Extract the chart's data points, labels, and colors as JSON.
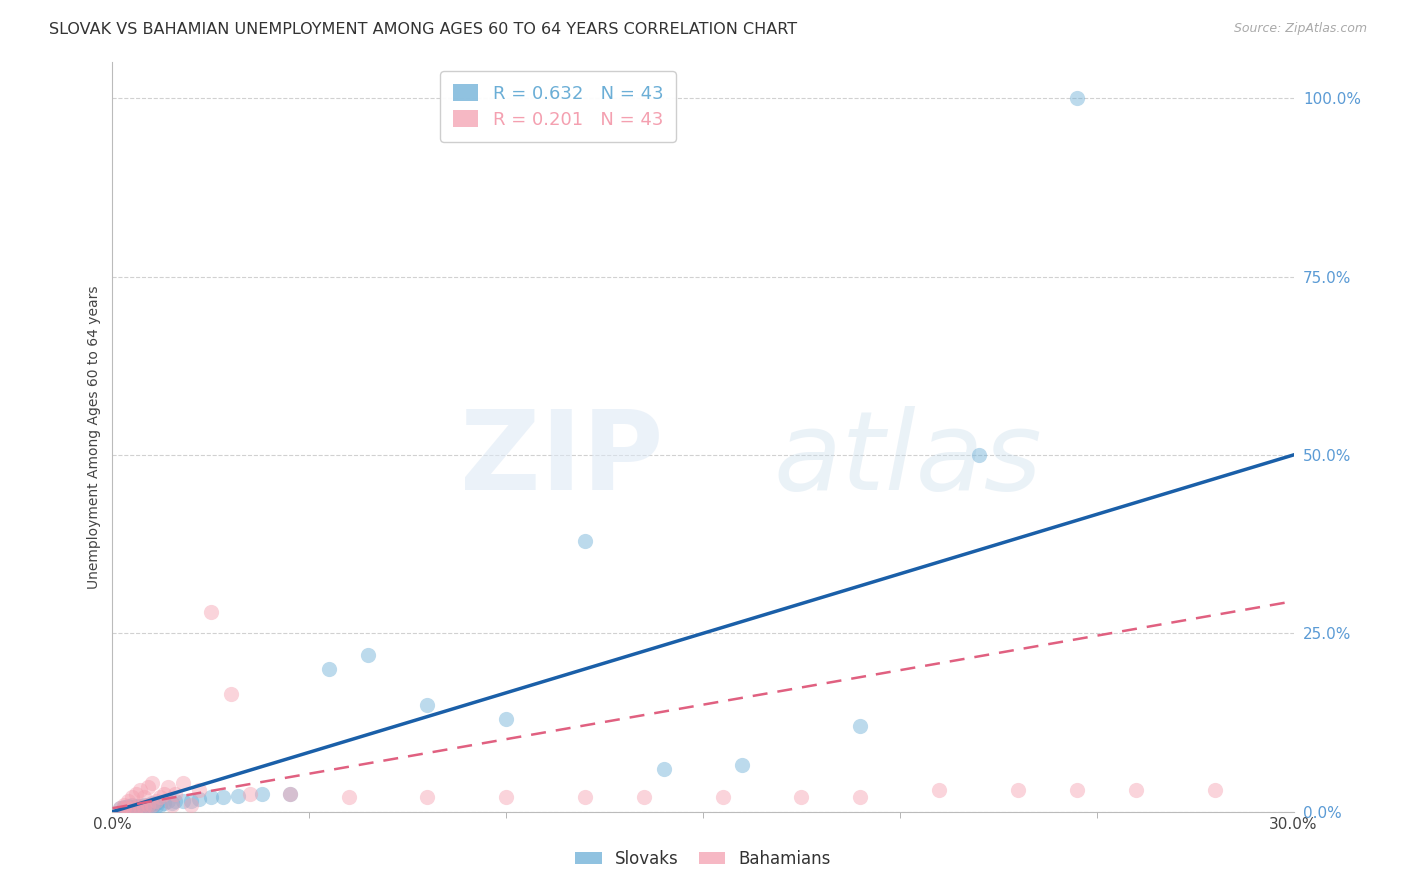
{
  "title": "SLOVAK VS BAHAMIAN UNEMPLOYMENT AMONG AGES 60 TO 64 YEARS CORRELATION CHART",
  "source": "Source: ZipAtlas.com",
  "ylabel": "Unemployment Among Ages 60 to 64 years",
  "xlim": [
    0.0,
    0.3
  ],
  "ylim": [
    0.0,
    1.05
  ],
  "xticks": [
    0.0,
    0.3
  ],
  "xtick_labels": [
    "0.0%",
    "30.0%"
  ],
  "ytick_labels": [
    "0.0%",
    "25.0%",
    "50.0%",
    "75.0%",
    "100.0%"
  ],
  "yticks": [
    0.0,
    0.25,
    0.5,
    0.75,
    1.0
  ],
  "legend_labels": [
    "Slovaks",
    "Bahamians"
  ],
  "blue_color": "#6baed6",
  "pink_color": "#f4a0b0",
  "trendline_blue": "#1a5fa8",
  "trendline_pink": "#e06080",
  "slovaks_x": [
    0.002,
    0.003,
    0.003,
    0.004,
    0.004,
    0.005,
    0.005,
    0.005,
    0.006,
    0.006,
    0.007,
    0.007,
    0.008,
    0.008,
    0.009,
    0.009,
    0.01,
    0.01,
    0.011,
    0.011,
    0.012,
    0.013,
    0.014,
    0.015,
    0.016,
    0.018,
    0.02,
    0.022,
    0.025,
    0.028,
    0.032,
    0.038,
    0.045,
    0.055,
    0.065,
    0.08,
    0.1,
    0.12,
    0.14,
    0.16,
    0.19,
    0.22,
    0.245
  ],
  "slovaks_y": [
    0.005,
    0.005,
    0.007,
    0.005,
    0.008,
    0.005,
    0.007,
    0.01,
    0.005,
    0.008,
    0.005,
    0.008,
    0.005,
    0.01,
    0.005,
    0.01,
    0.007,
    0.012,
    0.008,
    0.012,
    0.01,
    0.012,
    0.015,
    0.012,
    0.015,
    0.015,
    0.015,
    0.018,
    0.02,
    0.02,
    0.022,
    0.025,
    0.025,
    0.2,
    0.22,
    0.15,
    0.13,
    0.38,
    0.06,
    0.065,
    0.12,
    0.5,
    1.0
  ],
  "bahamians_x": [
    0.002,
    0.003,
    0.003,
    0.004,
    0.004,
    0.005,
    0.005,
    0.006,
    0.006,
    0.007,
    0.007,
    0.008,
    0.008,
    0.009,
    0.009,
    0.01,
    0.01,
    0.011,
    0.012,
    0.013,
    0.014,
    0.015,
    0.016,
    0.018,
    0.02,
    0.022,
    0.025,
    0.03,
    0.035,
    0.045,
    0.06,
    0.08,
    0.1,
    0.12,
    0.135,
    0.155,
    0.175,
    0.19,
    0.21,
    0.23,
    0.245,
    0.26,
    0.28
  ],
  "bahamians_y": [
    0.005,
    0.005,
    0.01,
    0.005,
    0.015,
    0.005,
    0.02,
    0.005,
    0.025,
    0.007,
    0.03,
    0.007,
    0.02,
    0.01,
    0.035,
    0.01,
    0.04,
    0.015,
    0.02,
    0.025,
    0.035,
    0.01,
    0.025,
    0.04,
    0.01,
    0.03,
    0.28,
    0.165,
    0.025,
    0.025,
    0.02,
    0.02,
    0.02,
    0.02,
    0.02,
    0.02,
    0.02,
    0.02,
    0.03,
    0.03,
    0.03,
    0.03,
    0.03
  ],
  "blue_trend_x": [
    0.0,
    0.3
  ],
  "blue_trend_y": [
    0.0,
    0.5
  ],
  "pink_trend_x": [
    0.0,
    0.3
  ],
  "pink_trend_y": [
    0.005,
    0.295
  ],
  "background_color": "#ffffff",
  "grid_color": "#cccccc",
  "title_fontsize": 11.5,
  "axis_label_fontsize": 10,
  "tick_fontsize": 11,
  "scatter_size": 120,
  "scatter_alpha": 0.45,
  "r_blue": "R = 0.632",
  "n_blue": "N = 43",
  "r_pink": "R = 0.201",
  "n_pink": "N = 43"
}
